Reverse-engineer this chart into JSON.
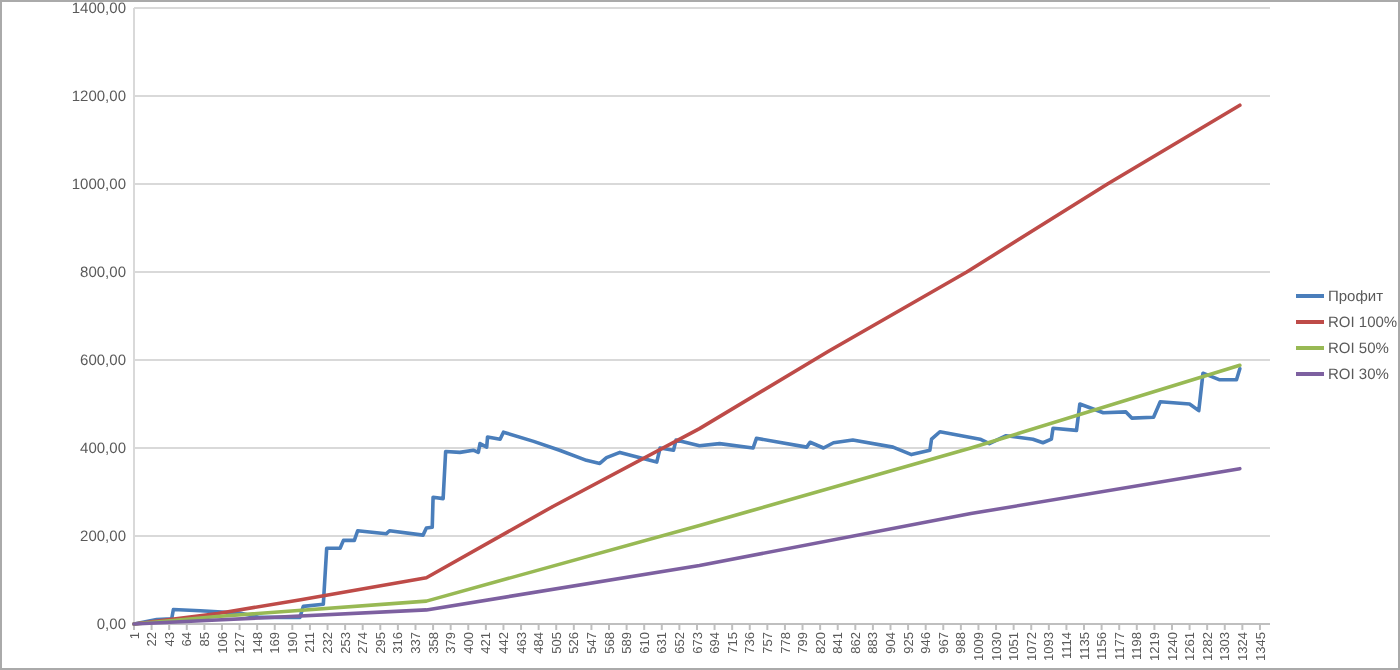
{
  "chart_data": {
    "type": "line",
    "xlim": [
      1,
      1357
    ],
    "xticks": [
      1,
      22,
      43,
      64,
      85,
      106,
      127,
      148,
      169,
      190,
      211,
      232,
      253,
      274,
      295,
      316,
      337,
      358,
      379,
      400,
      421,
      442,
      463,
      484,
      505,
      526,
      547,
      568,
      589,
      610,
      631,
      652,
      673,
      694,
      715,
      736,
      757,
      778,
      799,
      820,
      841,
      862,
      883,
      904,
      925,
      946,
      967,
      988,
      1009,
      1030,
      1051,
      1072,
      1093,
      1114,
      1135,
      1156,
      1177,
      1198,
      1219,
      1240,
      1261,
      1282,
      1303,
      1324,
      1345
    ],
    "ylim": [
      0,
      1400
    ],
    "yticks": [
      {
        "value": 0,
        "label": "0,00"
      },
      {
        "value": 200,
        "label": "200,00"
      },
      {
        "value": 400,
        "label": "400,00"
      },
      {
        "value": 600,
        "label": "600,00"
      },
      {
        "value": 800,
        "label": "800,00"
      },
      {
        "value": 1000,
        "label": "1000,00"
      },
      {
        "value": 1200,
        "label": "1200,00"
      },
      {
        "value": 1400,
        "label": "1400,00"
      }
    ],
    "grid": "y",
    "legend": "right",
    "marker": "none",
    "line_style": "solid",
    "series": [
      {
        "name": "Профит",
        "color": "#4a7ebb",
        "x": [
          1,
          28,
          46,
          48,
          80,
          127,
          151,
          199,
          203,
          227,
          231,
          247,
          251,
          264,
          268,
          302,
          306,
          346,
          350,
          357,
          358,
          370,
          373,
          390,
          406,
          412,
          414,
          422,
          423,
          438,
          442,
          478,
          509,
          541,
          557,
          565,
          581,
          597,
          625,
          629,
          645,
          648,
          676,
          700,
          740,
          744,
          804,
          808,
          824,
          836,
          859,
          907,
          929,
          951,
          953,
          963,
          1011,
          1022,
          1042,
          1074,
          1086,
          1096,
          1098,
          1126,
          1130,
          1158,
          1185,
          1192,
          1218,
          1226,
          1261,
          1272,
          1277,
          1297,
          1317,
          1321
        ],
        "values": [
          0,
          10,
          12,
          33,
          30,
          25,
          15,
          15,
          40,
          45,
          172,
          172,
          190,
          190,
          212,
          205,
          212,
          202,
          218,
          220,
          288,
          285,
          392,
          390,
          395,
          390,
          410,
          402,
          425,
          420,
          436,
          415,
          395,
          372,
          365,
          378,
          390,
          382,
          368,
          400,
          395,
          418,
          405,
          410,
          400,
          422,
          402,
          413,
          400,
          412,
          418,
          402,
          385,
          395,
          420,
          437,
          420,
          410,
          428,
          420,
          412,
          420,
          445,
          440,
          500,
          480,
          482,
          468,
          470,
          505,
          500,
          485,
          570,
          555,
          555,
          580
        ]
      },
      {
        "name": "ROI 100%",
        "color": "#be4b48",
        "x": [
          1,
          101,
          200,
          350,
          501,
          676,
          830,
          995,
          1163,
          1321
        ],
        "values": [
          0,
          24,
          55,
          105,
          267,
          444,
          620,
          800,
          1000,
          1179
        ]
      },
      {
        "name": "ROI 50%",
        "color": "#98b954",
        "x": [
          1,
          100,
          350,
          676,
          1000,
          1321
        ],
        "values": [
          0,
          17,
          52,
          224,
          400,
          588
        ]
      },
      {
        "name": "ROI 30%",
        "color": "#7d60a0",
        "x": [
          1,
          100,
          350,
          676,
          1000,
          1321
        ],
        "values": [
          0,
          9,
          32,
          133,
          251,
          353
        ]
      }
    ]
  }
}
